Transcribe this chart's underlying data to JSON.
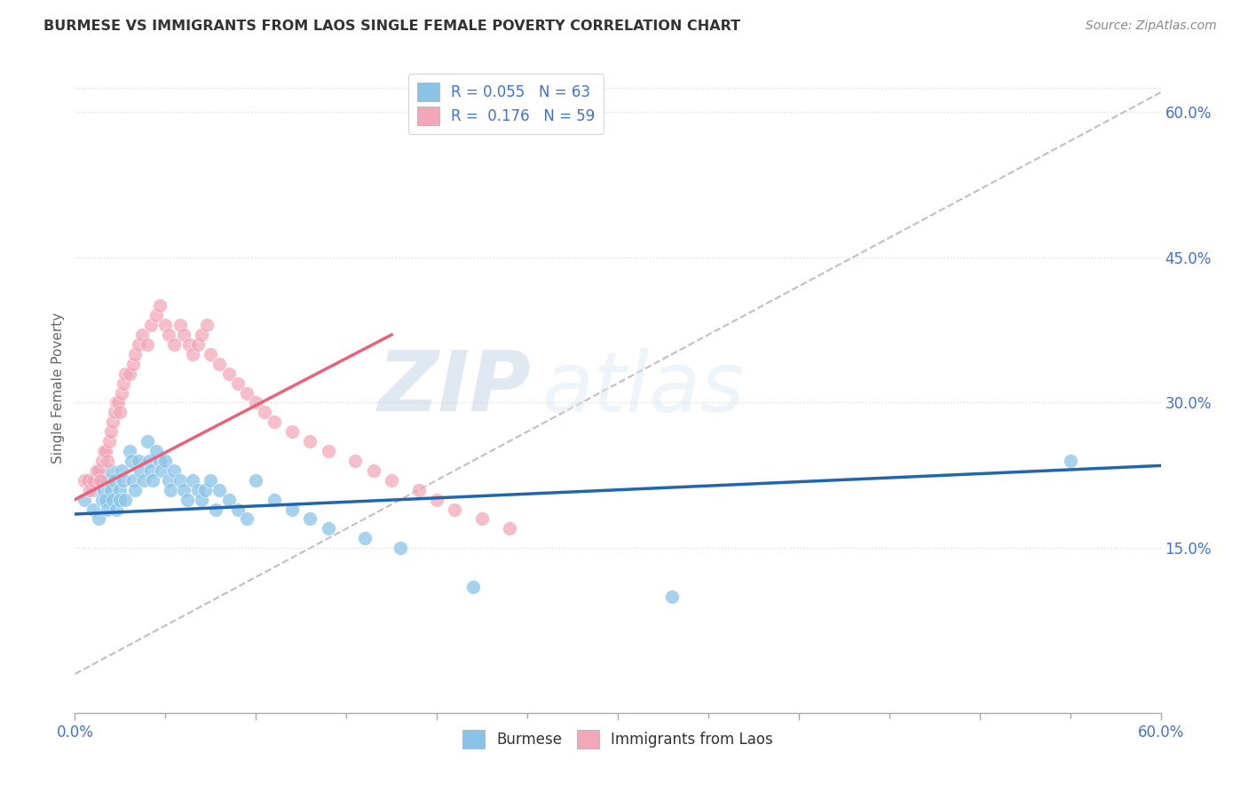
{
  "title": "BURMESE VS IMMIGRANTS FROM LAOS SINGLE FEMALE POVERTY CORRELATION CHART",
  "source": "Source: ZipAtlas.com",
  "ylabel": "Single Female Poverty",
  "xlim": [
    0.0,
    0.6
  ],
  "ylim": [
    -0.02,
    0.65
  ],
  "xtick_positions": [
    0.0,
    0.1,
    0.2,
    0.3,
    0.4,
    0.5,
    0.6
  ],
  "xtick_labels_visible": [
    "0.0%",
    "",
    "",
    "",
    "",
    "",
    "60.0%"
  ],
  "yticks_right": [
    0.15,
    0.3,
    0.45,
    0.6
  ],
  "ytick_labels_right": [
    "15.0%",
    "30.0%",
    "45.0%",
    "60.0%"
  ],
  "burmese_color": "#89c4e8",
  "burmese_edge": "#6aadd5",
  "laos_color": "#f4a7b9",
  "laos_edge": "#e88fa5",
  "burmese_line_color": "#2166ac",
  "laos_line_color": "#e8637a",
  "diagonal_color": "#ccbbbb",
  "burmese_R": 0.055,
  "burmese_N": 63,
  "laos_R": 0.176,
  "laos_N": 59,
  "legend_label1": "Burmese",
  "legend_label2": "Immigrants from Laos",
  "watermark_zip": "ZIP",
  "watermark_atlas": "atlas",
  "burmese_scatter_x": [
    0.005,
    0.008,
    0.01,
    0.01,
    0.012,
    0.013,
    0.015,
    0.015,
    0.016,
    0.017,
    0.018,
    0.018,
    0.02,
    0.02,
    0.021,
    0.022,
    0.023,
    0.025,
    0.025,
    0.026,
    0.027,
    0.028,
    0.03,
    0.031,
    0.032,
    0.033,
    0.035,
    0.036,
    0.038,
    0.04,
    0.041,
    0.042,
    0.043,
    0.045,
    0.047,
    0.048,
    0.05,
    0.052,
    0.053,
    0.055,
    0.058,
    0.06,
    0.062,
    0.065,
    0.068,
    0.07,
    0.072,
    0.075,
    0.078,
    0.08,
    0.085,
    0.09,
    0.095,
    0.1,
    0.11,
    0.12,
    0.13,
    0.14,
    0.16,
    0.18,
    0.22,
    0.33,
    0.55
  ],
  "burmese_scatter_y": [
    0.2,
    0.22,
    0.19,
    0.21,
    0.23,
    0.18,
    0.22,
    0.2,
    0.21,
    0.2,
    0.19,
    0.22,
    0.23,
    0.21,
    0.2,
    0.22,
    0.19,
    0.21,
    0.2,
    0.23,
    0.22,
    0.2,
    0.25,
    0.24,
    0.22,
    0.21,
    0.24,
    0.23,
    0.22,
    0.26,
    0.24,
    0.23,
    0.22,
    0.25,
    0.24,
    0.23,
    0.24,
    0.22,
    0.21,
    0.23,
    0.22,
    0.21,
    0.2,
    0.22,
    0.21,
    0.2,
    0.21,
    0.22,
    0.19,
    0.21,
    0.2,
    0.19,
    0.18,
    0.22,
    0.2,
    0.19,
    0.18,
    0.17,
    0.16,
    0.15,
    0.11,
    0.1,
    0.24
  ],
  "laos_scatter_x": [
    0.005,
    0.007,
    0.008,
    0.01,
    0.012,
    0.013,
    0.014,
    0.015,
    0.016,
    0.017,
    0.018,
    0.019,
    0.02,
    0.021,
    0.022,
    0.023,
    0.024,
    0.025,
    0.026,
    0.027,
    0.028,
    0.03,
    0.032,
    0.033,
    0.035,
    0.037,
    0.04,
    0.042,
    0.045,
    0.047,
    0.05,
    0.052,
    0.055,
    0.058,
    0.06,
    0.063,
    0.065,
    0.068,
    0.07,
    0.073,
    0.075,
    0.08,
    0.085,
    0.09,
    0.095,
    0.1,
    0.105,
    0.11,
    0.12,
    0.13,
    0.14,
    0.155,
    0.165,
    0.175,
    0.19,
    0.2,
    0.21,
    0.225,
    0.24
  ],
  "laos_scatter_y": [
    0.22,
    0.22,
    0.21,
    0.22,
    0.23,
    0.23,
    0.22,
    0.24,
    0.25,
    0.25,
    0.24,
    0.26,
    0.27,
    0.28,
    0.29,
    0.3,
    0.3,
    0.29,
    0.31,
    0.32,
    0.33,
    0.33,
    0.34,
    0.35,
    0.36,
    0.37,
    0.36,
    0.38,
    0.39,
    0.4,
    0.38,
    0.37,
    0.36,
    0.38,
    0.37,
    0.36,
    0.35,
    0.36,
    0.37,
    0.38,
    0.35,
    0.34,
    0.33,
    0.32,
    0.31,
    0.3,
    0.29,
    0.28,
    0.27,
    0.26,
    0.25,
    0.24,
    0.23,
    0.22,
    0.21,
    0.2,
    0.19,
    0.18,
    0.17
  ],
  "burmese_trend_x": [
    0.0,
    0.6
  ],
  "burmese_trend_y": [
    0.185,
    0.235
  ],
  "laos_trend_x": [
    0.0,
    0.175
  ],
  "laos_trend_y": [
    0.2,
    0.37
  ]
}
